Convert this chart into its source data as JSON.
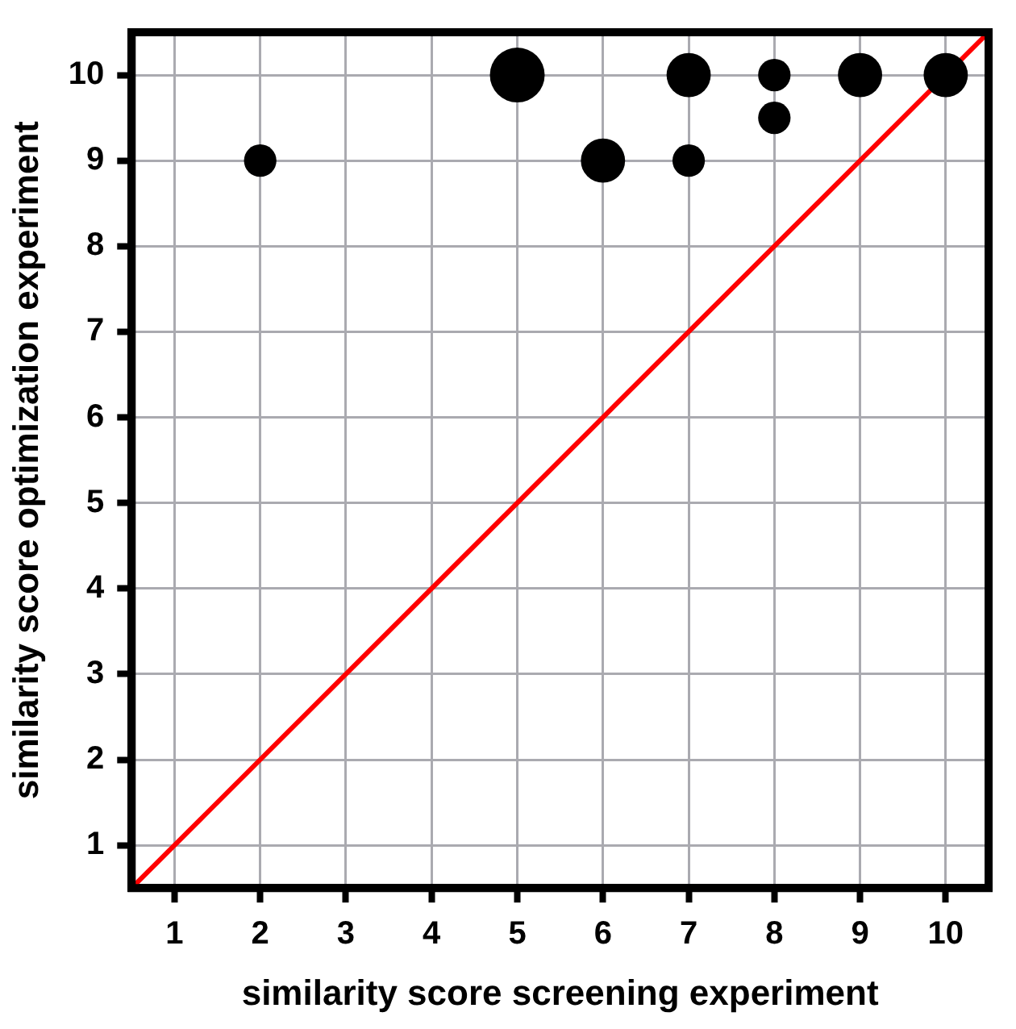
{
  "chart_data": {
    "type": "bubble",
    "xlabel": "similarity score screening experiment",
    "ylabel": "similarity score optimization experiment",
    "xlim": [
      0.5,
      10.5
    ],
    "ylim": [
      0.5,
      10.5
    ],
    "xticks": [
      1,
      2,
      3,
      4,
      5,
      6,
      7,
      8,
      9,
      10
    ],
    "yticks": [
      1,
      2,
      3,
      4,
      5,
      6,
      7,
      8,
      9,
      10
    ],
    "grid": true,
    "legend": false,
    "series": [
      {
        "color": "#000000",
        "x": [
          2,
          5,
          6,
          7,
          7,
          8,
          8,
          9,
          10
        ],
        "values": [
          9,
          10,
          9,
          10,
          9,
          10,
          9.5,
          10,
          10
        ],
        "sizes": [
          0.35,
          1,
          0.65,
          0.65,
          0.35,
          0.35,
          0.35,
          0.65,
          0.65
        ]
      },
      {
        "type": "line",
        "color": "#ff0000",
        "x": [
          0.5,
          10.5
        ],
        "values": [
          0.5,
          10.5
        ],
        "marker": "none",
        "line_style": "solid"
      }
    ]
  }
}
